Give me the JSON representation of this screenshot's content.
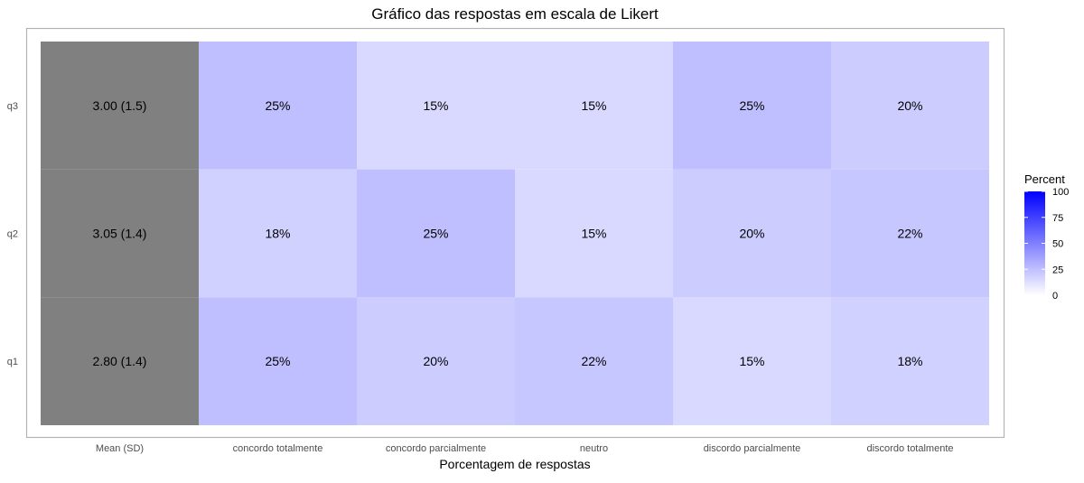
{
  "chart_data": {
    "type": "heatmap",
    "title": "Gráfico das respostas em escala de Likert",
    "xlabel": "Porcentagem de respostas",
    "ylabel": "",
    "mean_column_label": "Mean (SD)",
    "categories": [
      "concordo totalmente",
      "concordo parcialmente",
      "neutro",
      "discordo parcialmente",
      "discordo totalmente"
    ],
    "rows": [
      {
        "label": "q3",
        "mean_sd": "3.00 (1.5)",
        "values": [
          25,
          15,
          15,
          25,
          20
        ]
      },
      {
        "label": "q2",
        "mean_sd": "3.05 (1.4)",
        "values": [
          18,
          25,
          15,
          20,
          22
        ]
      },
      {
        "label": "q1",
        "mean_sd": "2.80 (1.4)",
        "values": [
          25,
          20,
          22,
          15,
          18
        ]
      }
    ],
    "value_suffix": "%",
    "legend": {
      "title": "Percent",
      "ticks": [
        0,
        25,
        50,
        75,
        100
      ],
      "range": [
        0,
        100
      ],
      "color_low": "#ffffff",
      "color_high": "#0000ff",
      "position": "right"
    },
    "mean_cell_color": "#808080",
    "grid": false
  }
}
